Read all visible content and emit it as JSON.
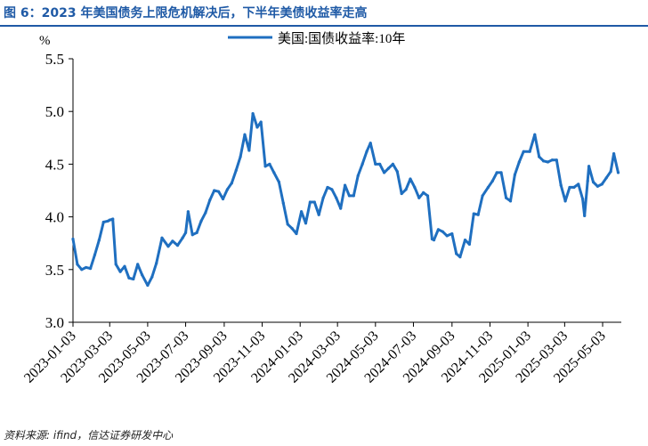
{
  "figure": {
    "title": "图 6：2023 年美国债务上限危机解决后，下半年美债收益率走高",
    "source": "资料来源: ifind，信达证券研发中心"
  },
  "chart_data": {
    "type": "line",
    "title": "",
    "ylabel": "%",
    "xlabel": "",
    "ylim": [
      3.0,
      5.5
    ],
    "yticks": [
      "3.0",
      "3.5",
      "4.0",
      "4.5",
      "5.0",
      "5.5"
    ],
    "xticks": [
      "2023-01-03",
      "2023-03-03",
      "2023-05-03",
      "2023-07-03",
      "2023-09-03",
      "2023-11-03",
      "2024-01-03",
      "2024-03-03",
      "2024-05-03",
      "2024-07-03",
      "2024-09-03",
      "2024-11-03",
      "2025-01-03",
      "2025-03-03",
      "2025-05-03"
    ],
    "legend": "top-center",
    "color": "#1f6fc0",
    "series": [
      {
        "name": "美国:国债收益率:10年",
        "x": [
          "2023-01-03",
          "2023-01-10",
          "2023-01-17",
          "2023-01-24",
          "2023-01-31",
          "2023-02-07",
          "2023-02-14",
          "2023-02-21",
          "2023-02-28",
          "2023-03-03",
          "2023-03-08",
          "2023-03-13",
          "2023-03-20",
          "2023-03-27",
          "2023-04-03",
          "2023-04-10",
          "2023-04-17",
          "2023-04-24",
          "2023-05-03",
          "2023-05-10",
          "2023-05-17",
          "2023-05-26",
          "2023-06-05",
          "2023-06-12",
          "2023-06-20",
          "2023-06-28",
          "2023-07-03",
          "2023-07-07",
          "2023-07-14",
          "2023-07-21",
          "2023-07-28",
          "2023-08-04",
          "2023-08-11",
          "2023-08-18",
          "2023-08-25",
          "2023-09-01",
          "2023-09-08",
          "2023-09-15",
          "2023-09-22",
          "2023-09-29",
          "2023-10-06",
          "2023-10-13",
          "2023-10-19",
          "2023-10-26",
          "2023-11-01",
          "2023-11-08",
          "2023-11-15",
          "2023-11-22",
          "2023-11-30",
          "2023-12-07",
          "2023-12-14",
          "2023-12-21",
          "2023-12-28",
          "2024-01-05",
          "2024-01-12",
          "2024-01-19",
          "2024-01-26",
          "2024-02-02",
          "2024-02-09",
          "2024-02-16",
          "2024-02-23",
          "2024-03-01",
          "2024-03-08",
          "2024-03-15",
          "2024-03-22",
          "2024-03-29",
          "2024-04-05",
          "2024-04-12",
          "2024-04-19",
          "2024-04-25",
          "2024-05-03",
          "2024-05-10",
          "2024-05-17",
          "2024-05-24",
          "2024-05-31",
          "2024-06-07",
          "2024-06-14",
          "2024-06-21",
          "2024-06-28",
          "2024-07-05",
          "2024-07-12",
          "2024-07-19",
          "2024-07-26",
          "2024-08-02",
          "2024-08-05",
          "2024-08-12",
          "2024-08-19",
          "2024-08-26",
          "2024-09-03",
          "2024-09-10",
          "2024-09-16",
          "2024-09-24",
          "2024-10-01",
          "2024-10-08",
          "2024-10-15",
          "2024-10-22",
          "2024-10-31",
          "2024-11-07",
          "2024-11-14",
          "2024-11-21",
          "2024-11-29",
          "2024-12-06",
          "2024-12-13",
          "2024-12-20",
          "2024-12-27",
          "2025-01-06",
          "2025-01-14",
          "2025-01-21",
          "2025-01-28",
          "2025-02-04",
          "2025-02-11",
          "2025-02-18",
          "2025-02-25",
          "2025-03-04",
          "2025-03-11",
          "2025-03-18",
          "2025-03-25",
          "2025-04-01",
          "2025-04-04",
          "2025-04-09",
          "2025-04-11",
          "2025-04-18",
          "2025-04-25",
          "2025-05-02",
          "2025-05-09",
          "2025-05-16",
          "2025-05-21",
          "2025-05-28"
        ],
        "values": [
          3.79,
          3.55,
          3.5,
          3.52,
          3.51,
          3.64,
          3.78,
          3.95,
          3.96,
          3.97,
          3.98,
          3.55,
          3.48,
          3.53,
          3.42,
          3.41,
          3.55,
          3.45,
          3.35,
          3.43,
          3.56,
          3.8,
          3.72,
          3.77,
          3.73,
          3.8,
          3.85,
          4.05,
          3.83,
          3.85,
          3.96,
          4.04,
          4.16,
          4.25,
          4.24,
          4.17,
          4.26,
          4.32,
          4.44,
          4.57,
          4.78,
          4.63,
          4.98,
          4.85,
          4.9,
          4.48,
          4.5,
          4.42,
          4.33,
          4.13,
          3.93,
          3.89,
          3.84,
          4.05,
          3.94,
          4.14,
          4.14,
          4.02,
          4.18,
          4.28,
          4.26,
          4.18,
          4.08,
          4.3,
          4.2,
          4.2,
          4.39,
          4.5,
          4.62,
          4.7,
          4.5,
          4.5,
          4.42,
          4.46,
          4.5,
          4.43,
          4.22,
          4.26,
          4.36,
          4.28,
          4.18,
          4.23,
          4.2,
          3.79,
          3.78,
          3.88,
          3.86,
          3.82,
          3.84,
          3.65,
          3.62,
          3.78,
          3.74,
          4.03,
          4.02,
          4.2,
          4.28,
          4.34,
          4.42,
          4.42,
          4.18,
          4.15,
          4.4,
          4.52,
          4.62,
          4.62,
          4.78,
          4.57,
          4.53,
          4.52,
          4.54,
          4.54,
          4.3,
          4.15,
          4.28,
          4.28,
          4.31,
          4.17,
          4.01,
          4.34,
          4.48,
          4.33,
          4.29,
          4.31,
          4.37,
          4.43,
          4.6,
          4.42
        ]
      }
    ]
  }
}
